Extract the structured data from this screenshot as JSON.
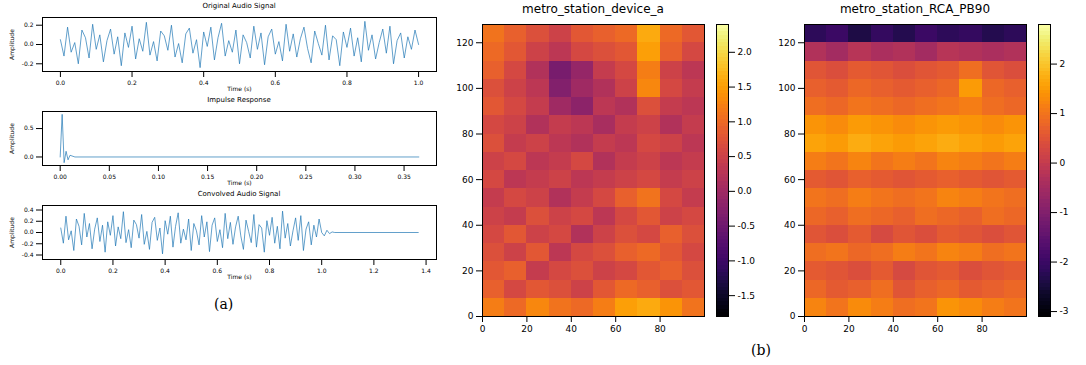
{
  "chart_data": [
    {
      "type": "line",
      "title": "Original Audio Signal",
      "x_label": "Time (s)",
      "y_label": "Amplitude",
      "color": "#1f77b4",
      "x": [
        0,
        0.01,
        0.02,
        0.03,
        0.04,
        0.05,
        0.06,
        0.07,
        0.08,
        0.09,
        0.1,
        0.11,
        0.12,
        0.13,
        0.14,
        0.15,
        0.16,
        0.17,
        0.18,
        0.19,
        0.2,
        0.21,
        0.22,
        0.23,
        0.24,
        0.25,
        0.26,
        0.27,
        0.28,
        0.29,
        0.3,
        0.31,
        0.32,
        0.33,
        0.34,
        0.35,
        0.36,
        0.37,
        0.38,
        0.39,
        0.4,
        0.41,
        0.42,
        0.43,
        0.44,
        0.45,
        0.46,
        0.47,
        0.48,
        0.49,
        0.5,
        0.51,
        0.52,
        0.53,
        0.54,
        0.55,
        0.56,
        0.57,
        0.58,
        0.59,
        0.6,
        0.61,
        0.62,
        0.63,
        0.64,
        0.65,
        0.66,
        0.67,
        0.68,
        0.69,
        0.7,
        0.71,
        0.72,
        0.73,
        0.74,
        0.75,
        0.76,
        0.77,
        0.78,
        0.79,
        0.8,
        0.81,
        0.82,
        0.83,
        0.84,
        0.85,
        0.86,
        0.87,
        0.88,
        0.89,
        0.9,
        0.91,
        0.92,
        0.93,
        0.94,
        0.95,
        0.96,
        0.97,
        0.98,
        0.99,
        1
      ],
      "values": [
        0.05,
        -0.12,
        0.18,
        -0.08,
        0.02,
        -0.2,
        0.15,
        0.07,
        -0.14,
        0.21,
        -0.05,
        0.1,
        -0.18,
        0.04,
        0.16,
        -0.1,
        0.08,
        -0.22,
        0.12,
        -0.03,
        0.19,
        -0.15,
        0.06,
        -0.07,
        0.23,
        -0.11,
        0.03,
        -0.17,
        0.14,
        0.09,
        -0.06,
        0.2,
        -0.13,
        0.01,
        -0.19,
        0.11,
        0.17,
        -0.09,
        0.05,
        -0.24,
        0.13,
        -0.02,
        0.18,
        -0.16,
        0.07,
        0.22,
        -0.12,
        0.04,
        -0.08,
        0.15,
        -0.2,
        0.1,
        0.02,
        -0.14,
        0.19,
        -0.05,
        0.12,
        -0.21,
        0.08,
        0.16,
        -0.1,
        0.03,
        -0.17,
        0.21,
        -0.07,
        0.11,
        -0.13,
        0.06,
        0.18,
        -0.04,
        -0.19,
        0.14,
        0.01,
        -0.11,
        0.2,
        -0.16,
        0.09,
        0.05,
        -0.22,
        0.13,
        -0.03,
        0.17,
        -0.12,
        0.07,
        -0.18,
        0.24,
        -0.06,
        0.1,
        -0.15,
        0.02,
        0.16,
        -0.09,
        0.19,
        -0.2,
        0.04,
        0.12,
        -0.14,
        0.08,
        -0.05,
        0.15,
        0
      ],
      "xlim": [
        -0.05,
        1.05
      ],
      "ylim": [
        -0.28,
        0.28
      ],
      "xticks": [
        {
          "value": 0,
          "label": "0.0"
        },
        0.2,
        0.4,
        0.6,
        0.8,
        {
          "value": 1,
          "label": "1.0"
        }
      ],
      "yticks": [
        -0.2,
        {
          "value": 0,
          "label": "0.0"
        },
        0.2
      ]
    },
    {
      "type": "line",
      "title": "Impulse Response",
      "x_label": "Time (s)",
      "y_label": "Amplitude",
      "color": "#1f77b4",
      "x": [
        0,
        0.002,
        0.004,
        0.006,
        0.008,
        0.01,
        0.015,
        0.365
      ],
      "values": [
        0,
        0.75,
        -0.1,
        0.1,
        -0.05,
        0.03,
        0,
        0
      ],
      "xlim": [
        -0.018,
        0.383
      ],
      "ylim": [
        -0.15,
        0.8
      ],
      "xticks": [
        {
          "value": 0,
          "label": "0.00"
        },
        0.05,
        {
          "value": 0.1,
          "label": "0.10"
        },
        0.15,
        {
          "value": 0.2,
          "label": "0.20"
        },
        0.25,
        {
          "value": 0.3,
          "label": "0.30"
        },
        0.35
      ],
      "yticks": [
        {
          "value": 0,
          "label": "0.0"
        },
        0.5
      ]
    },
    {
      "type": "line",
      "title": "Convolved Audio Signal",
      "x_label": "Time (s)",
      "y_label": "Amplitude",
      "color": "#1f77b4",
      "x": [
        0,
        0.01,
        0.02,
        0.03,
        0.04,
        0.05,
        0.06,
        0.07,
        0.08,
        0.09,
        0.1,
        0.11,
        0.12,
        0.13,
        0.14,
        0.15,
        0.16,
        0.17,
        0.18,
        0.19,
        0.2,
        0.21,
        0.22,
        0.23,
        0.24,
        0.25,
        0.26,
        0.27,
        0.28,
        0.29,
        0.3,
        0.31,
        0.32,
        0.33,
        0.34,
        0.35,
        0.36,
        0.37,
        0.38,
        0.39,
        0.4,
        0.41,
        0.42,
        0.43,
        0.44,
        0.45,
        0.46,
        0.47,
        0.48,
        0.49,
        0.5,
        0.51,
        0.52,
        0.53,
        0.54,
        0.55,
        0.56,
        0.57,
        0.58,
        0.59,
        0.6,
        0.61,
        0.62,
        0.63,
        0.64,
        0.65,
        0.66,
        0.67,
        0.68,
        0.69,
        0.7,
        0.71,
        0.72,
        0.73,
        0.74,
        0.75,
        0.76,
        0.77,
        0.78,
        0.79,
        0.8,
        0.81,
        0.82,
        0.83,
        0.84,
        0.85,
        0.86,
        0.87,
        0.88,
        0.89,
        0.9,
        0.91,
        0.92,
        0.93,
        0.94,
        0.95,
        0.96,
        0.97,
        0.98,
        0.99,
        1,
        1.01,
        1.02,
        1.03,
        1.04,
        1.05,
        1.37
      ],
      "values": [
        0.08,
        -0.19,
        0.29,
        -0.13,
        0.03,
        -0.32,
        0.24,
        0.11,
        -0.22,
        0.34,
        -0.08,
        0.16,
        -0.29,
        0.06,
        0.26,
        -0.16,
        0.13,
        -0.35,
        0.19,
        -0.05,
        0.3,
        -0.24,
        0.1,
        -0.11,
        0.37,
        -0.18,
        0.05,
        -0.27,
        0.22,
        0.14,
        -0.1,
        0.32,
        -0.21,
        0.02,
        -0.3,
        0.18,
        0.27,
        -0.14,
        0.08,
        -0.38,
        0.21,
        -0.03,
        0.29,
        -0.26,
        0.11,
        0.35,
        -0.19,
        0.06,
        -0.13,
        0.24,
        -0.32,
        0.16,
        0.03,
        -0.22,
        0.3,
        -0.08,
        0.19,
        -0.34,
        0.13,
        0.26,
        -0.16,
        0.05,
        -0.27,
        0.34,
        -0.11,
        0.18,
        -0.21,
        0.1,
        0.29,
        -0.06,
        -0.3,
        0.22,
        0.02,
        -0.18,
        0.32,
        -0.26,
        0.14,
        0.08,
        -0.35,
        0.21,
        -0.05,
        0.27,
        -0.19,
        0.11,
        -0.29,
        0.38,
        -0.1,
        0.16,
        -0.24,
        0.03,
        0.26,
        -0.14,
        0.3,
        -0.32,
        0.06,
        0.19,
        -0.22,
        0.13,
        -0.08,
        0.24,
        0,
        -0.06,
        0.04,
        -0.02,
        0.01,
        0,
        0
      ],
      "xlim": [
        -0.07,
        1.44
      ],
      "ylim": [
        -0.48,
        0.48
      ],
      "xticks": [
        {
          "value": 0,
          "label": "0.0"
        },
        0.2,
        0.4,
        0.6,
        0.8,
        {
          "value": 1,
          "label": "1.0"
        },
        1.2,
        1.4
      ],
      "yticks": [
        -0.4,
        -0.2,
        {
          "value": 0,
          "label": "0.0"
        },
        0.2,
        0.4
      ]
    },
    {
      "type": "heatmap",
      "title": "metro_station_device_a",
      "color": "inferno",
      "x_bins": [
        0,
        10,
        20,
        30,
        40,
        50,
        60,
        70,
        80,
        90,
        100
      ],
      "y_bins": [
        0,
        8,
        16,
        24,
        32,
        40,
        48,
        56,
        64,
        72,
        80,
        88,
        96,
        104,
        112,
        120,
        128
      ],
      "z": [
        [
          1.2,
          1.0,
          1.3,
          1.1,
          1.0,
          1.2,
          1.5,
          1.6,
          1.4,
          1.1
        ],
        [
          0.9,
          0.6,
          0.8,
          0.7,
          0.5,
          0.8,
          1.0,
          0.9,
          0.7,
          0.8
        ],
        [
          0.8,
          0.9,
          0.4,
          0.6,
          0.7,
          0.5,
          0.6,
          0.8,
          0.9,
          0.7
        ],
        [
          0.7,
          0.5,
          0.8,
          0.3,
          0.6,
          0.7,
          0.9,
          1.0,
          0.8,
          0.6
        ],
        [
          0.6,
          0.8,
          0.5,
          0.6,
          0.2,
          0.5,
          0.7,
          0.6,
          0.9,
          0.7
        ],
        [
          0.5,
          0.4,
          0.7,
          0.5,
          0.6,
          0.3,
          0.6,
          0.8,
          0.5,
          0.6
        ],
        [
          0.4,
          0.6,
          0.5,
          0.2,
          0.4,
          0.6,
          0.9,
          1.1,
          0.6,
          0.4
        ],
        [
          0.6,
          0.3,
          0.4,
          0.5,
          0.3,
          0.4,
          0.5,
          0.6,
          0.4,
          0.5
        ],
        [
          0.5,
          0.6,
          0.3,
          0.4,
          0.6,
          0.2,
          0.4,
          0.5,
          0.3,
          0.4
        ],
        [
          0.7,
          0.4,
          0.5,
          0.3,
          0.2,
          0.4,
          0.3,
          0.6,
          0.5,
          0.3
        ],
        [
          0.6,
          0.5,
          0.2,
          0.4,
          0.3,
          0.1,
          0.4,
          0.5,
          0.2,
          0.4
        ],
        [
          0.8,
          0.6,
          0.4,
          0.0,
          -0.2,
          0.3,
          0.2,
          0.7,
          0.4,
          0.3
        ],
        [
          0.7,
          0.5,
          0.3,
          -0.3,
          0.0,
          0.2,
          0.5,
          1.3,
          0.6,
          0.4
        ],
        [
          0.9,
          0.6,
          0.2,
          -0.4,
          -0.1,
          0.4,
          0.6,
          1.2,
          0.5,
          0.3
        ],
        [
          1.0,
          0.8,
          0.5,
          0.3,
          0.6,
          0.7,
          0.8,
          1.5,
          0.9,
          0.6
        ],
        [
          1.1,
          0.9,
          0.7,
          0.5,
          0.8,
          0.9,
          1.0,
          1.6,
          1.0,
          0.8
        ]
      ],
      "xlim": [
        0,
        100
      ],
      "ylim": [
        0,
        128
      ],
      "xticks": [
        0,
        20,
        40,
        60,
        80
      ],
      "yticks": [
        0,
        20,
        40,
        60,
        80,
        100,
        120
      ],
      "colorbar": {
        "range": [
          -1.8,
          2.4
        ],
        "ticks": [
          -1.5,
          {
            "value": -1,
            "label": "-1.0"
          },
          -0.5,
          {
            "value": 0,
            "label": "0.0"
          },
          0.5,
          {
            "value": 1,
            "label": "1.0"
          },
          1.5,
          {
            "value": 2,
            "label": "2.0"
          }
        ]
      }
    },
    {
      "type": "heatmap",
      "title": "metro_station_RCA_PB90",
      "color": "inferno",
      "x_bins": [
        0,
        10,
        20,
        30,
        40,
        50,
        60,
        70,
        80,
        90,
        100
      ],
      "y_bins": [
        0,
        8,
        16,
        24,
        32,
        40,
        48,
        56,
        64,
        72,
        80,
        88,
        96,
        104,
        112,
        120,
        128
      ],
      "z": [
        [
          1.2,
          1.0,
          1.3,
          1.1,
          0.9,
          1.0,
          1.4,
          1.3,
          1.1,
          1.0
        ],
        [
          0.8,
          0.6,
          0.7,
          0.9,
          0.5,
          0.7,
          0.8,
          0.6,
          0.7,
          0.8
        ],
        [
          0.6,
          0.5,
          0.4,
          0.6,
          0.3,
          0.5,
          0.6,
          0.4,
          0.5,
          0.6
        ],
        [
          0.9,
          1.0,
          0.8,
          0.9,
          1.1,
          1.0,
          1.2,
          1.1,
          0.9,
          1.0
        ],
        [
          0.5,
          0.4,
          0.6,
          0.3,
          0.5,
          0.4,
          0.6,
          0.5,
          0.4,
          0.5
        ],
        [
          0.8,
          0.7,
          0.9,
          0.8,
          0.7,
          0.9,
          0.8,
          0.7,
          0.9,
          0.8
        ],
        [
          1.0,
          0.9,
          1.1,
          1.0,
          0.9,
          1.0,
          1.2,
          1.1,
          1.0,
          0.9
        ],
        [
          0.6,
          0.5,
          0.7,
          0.6,
          0.5,
          0.6,
          0.7,
          0.6,
          0.5,
          0.6
        ],
        [
          1.1,
          1.0,
          1.2,
          1.0,
          1.1,
          1.0,
          1.2,
          1.1,
          1.0,
          1.1
        ],
        [
          1.6,
          1.5,
          1.7,
          1.6,
          1.5,
          1.6,
          1.7,
          1.6,
          1.5,
          1.6
        ],
        [
          1.4,
          1.3,
          1.5,
          1.4,
          1.3,
          1.4,
          1.5,
          1.4,
          1.3,
          1.4
        ],
        [
          0.9,
          0.8,
          1.0,
          0.9,
          0.8,
          0.9,
          1.0,
          1.1,
          0.9,
          0.8
        ],
        [
          0.7,
          0.6,
          0.8,
          0.7,
          0.6,
          0.7,
          0.8,
          1.5,
          0.8,
          0.7
        ],
        [
          0.5,
          0.4,
          0.6,
          0.5,
          0.4,
          0.5,
          0.6,
          0.9,
          0.5,
          0.4
        ],
        [
          -0.3,
          -0.5,
          -0.2,
          -0.4,
          -0.3,
          -0.5,
          -0.2,
          -0.3,
          -0.4,
          -0.3
        ],
        [
          -2.2,
          -2.0,
          -2.4,
          -2.1,
          -2.3,
          -2.0,
          -2.2,
          -2.1,
          -2.3,
          -2.2
        ]
      ],
      "xlim": [
        0,
        100
      ],
      "ylim": [
        0,
        128
      ],
      "xticks": [
        0,
        20,
        40,
        60,
        80
      ],
      "yticks": [
        0,
        20,
        40,
        60,
        80,
        100,
        120
      ],
      "colorbar": {
        "range": [
          -3.1,
          2.8
        ],
        "ticks": [
          -3,
          -2,
          -1,
          0,
          1,
          2
        ]
      }
    }
  ],
  "panel_labels": [
    "(a)",
    "(b)"
  ]
}
